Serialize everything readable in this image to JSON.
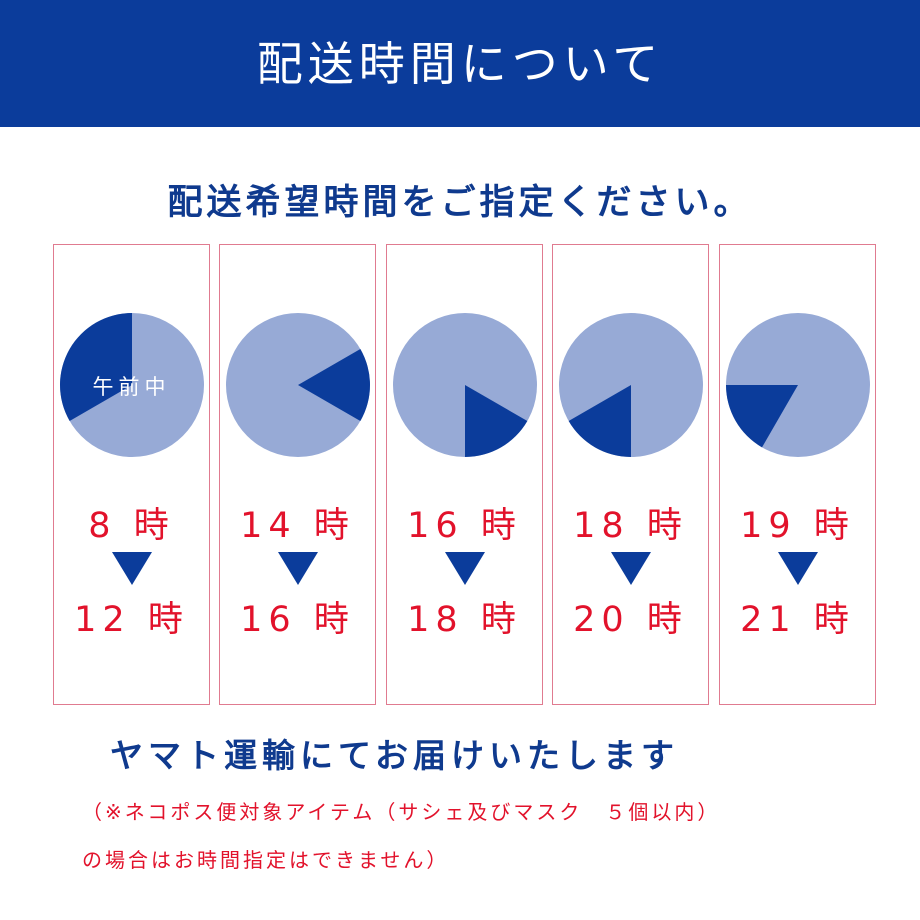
{
  "colors": {
    "header_bg": "#0b3c9b",
    "dark_blue": "#0b3c9b",
    "light_blue": "#97aad6",
    "red": "#e2122b",
    "border_pink": "#e07b90"
  },
  "header": {
    "title": "配送時間について"
  },
  "subtitle": "配送希望時間をご指定ください。",
  "slots": [
    {
      "clock_label": "午前中",
      "start": "8 時",
      "end": "12 時",
      "start_hour": 8,
      "end_hour": 12
    },
    {
      "clock_label": "",
      "start": "14 時",
      "end": "16 時",
      "start_hour": 14,
      "end_hour": 16
    },
    {
      "clock_label": "",
      "start": "16 時",
      "end": "18 時",
      "start_hour": 16,
      "end_hour": 18
    },
    {
      "clock_label": "",
      "start": "18 時",
      "end": "20 時",
      "start_hour": 18,
      "end_hour": 20
    },
    {
      "clock_label": "",
      "start": "19 時",
      "end": "21 時",
      "start_hour": 19,
      "end_hour": 21
    }
  ],
  "delivery_text": "ヤマト運輸にてお届けいたします",
  "notes": {
    "line1": "（※ネコポス便対象アイテム（サシェ及びマスク　５個以内）",
    "line2": "の場合はお時間指定はできません）"
  }
}
